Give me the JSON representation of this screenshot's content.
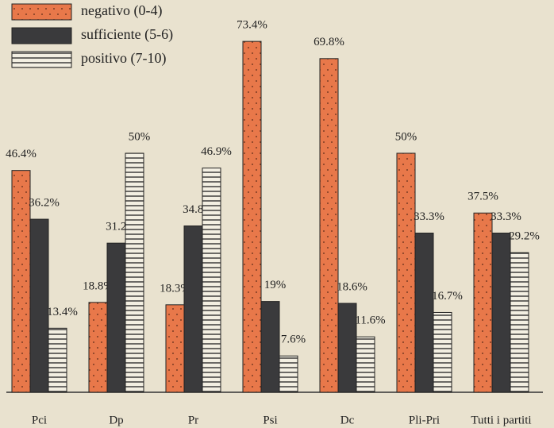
{
  "chart_data": {
    "type": "bar",
    "categories": [
      "Pci",
      "Dp",
      "Pr",
      "Psi",
      "Dc",
      "Pli-Pri",
      "Tutti i partiti"
    ],
    "series": [
      {
        "name": "negativo (0-4)",
        "color": "#e8784a",
        "values": [
          46.4,
          18.8,
          18.3,
          73.4,
          69.8,
          50,
          37.5
        ],
        "value_labels": [
          "46.4%",
          "18.8%",
          "18.3%",
          "73.4%",
          "69.8%",
          "50%",
          "37.5%"
        ]
      },
      {
        "name": "sufficiente (5-6)",
        "color": "#3a3a3c",
        "values": [
          36.2,
          31.2,
          34.8,
          19,
          18.6,
          33.3,
          33.3
        ],
        "value_labels": [
          "36.2%",
          "31.2%",
          "34.8%",
          "19%",
          "18.6%",
          "33.3%",
          "33.3%"
        ]
      },
      {
        "name": "positivo (7-10)",
        "color": "#f3efe2",
        "values": [
          13.4,
          50,
          46.9,
          7.6,
          11.6,
          16.7,
          29.2
        ],
        "value_labels": [
          "13.4%",
          "50%",
          "46.9%",
          "7.6%",
          "11.6%",
          "16.7%",
          "29.2%"
        ]
      }
    ]
  }
}
